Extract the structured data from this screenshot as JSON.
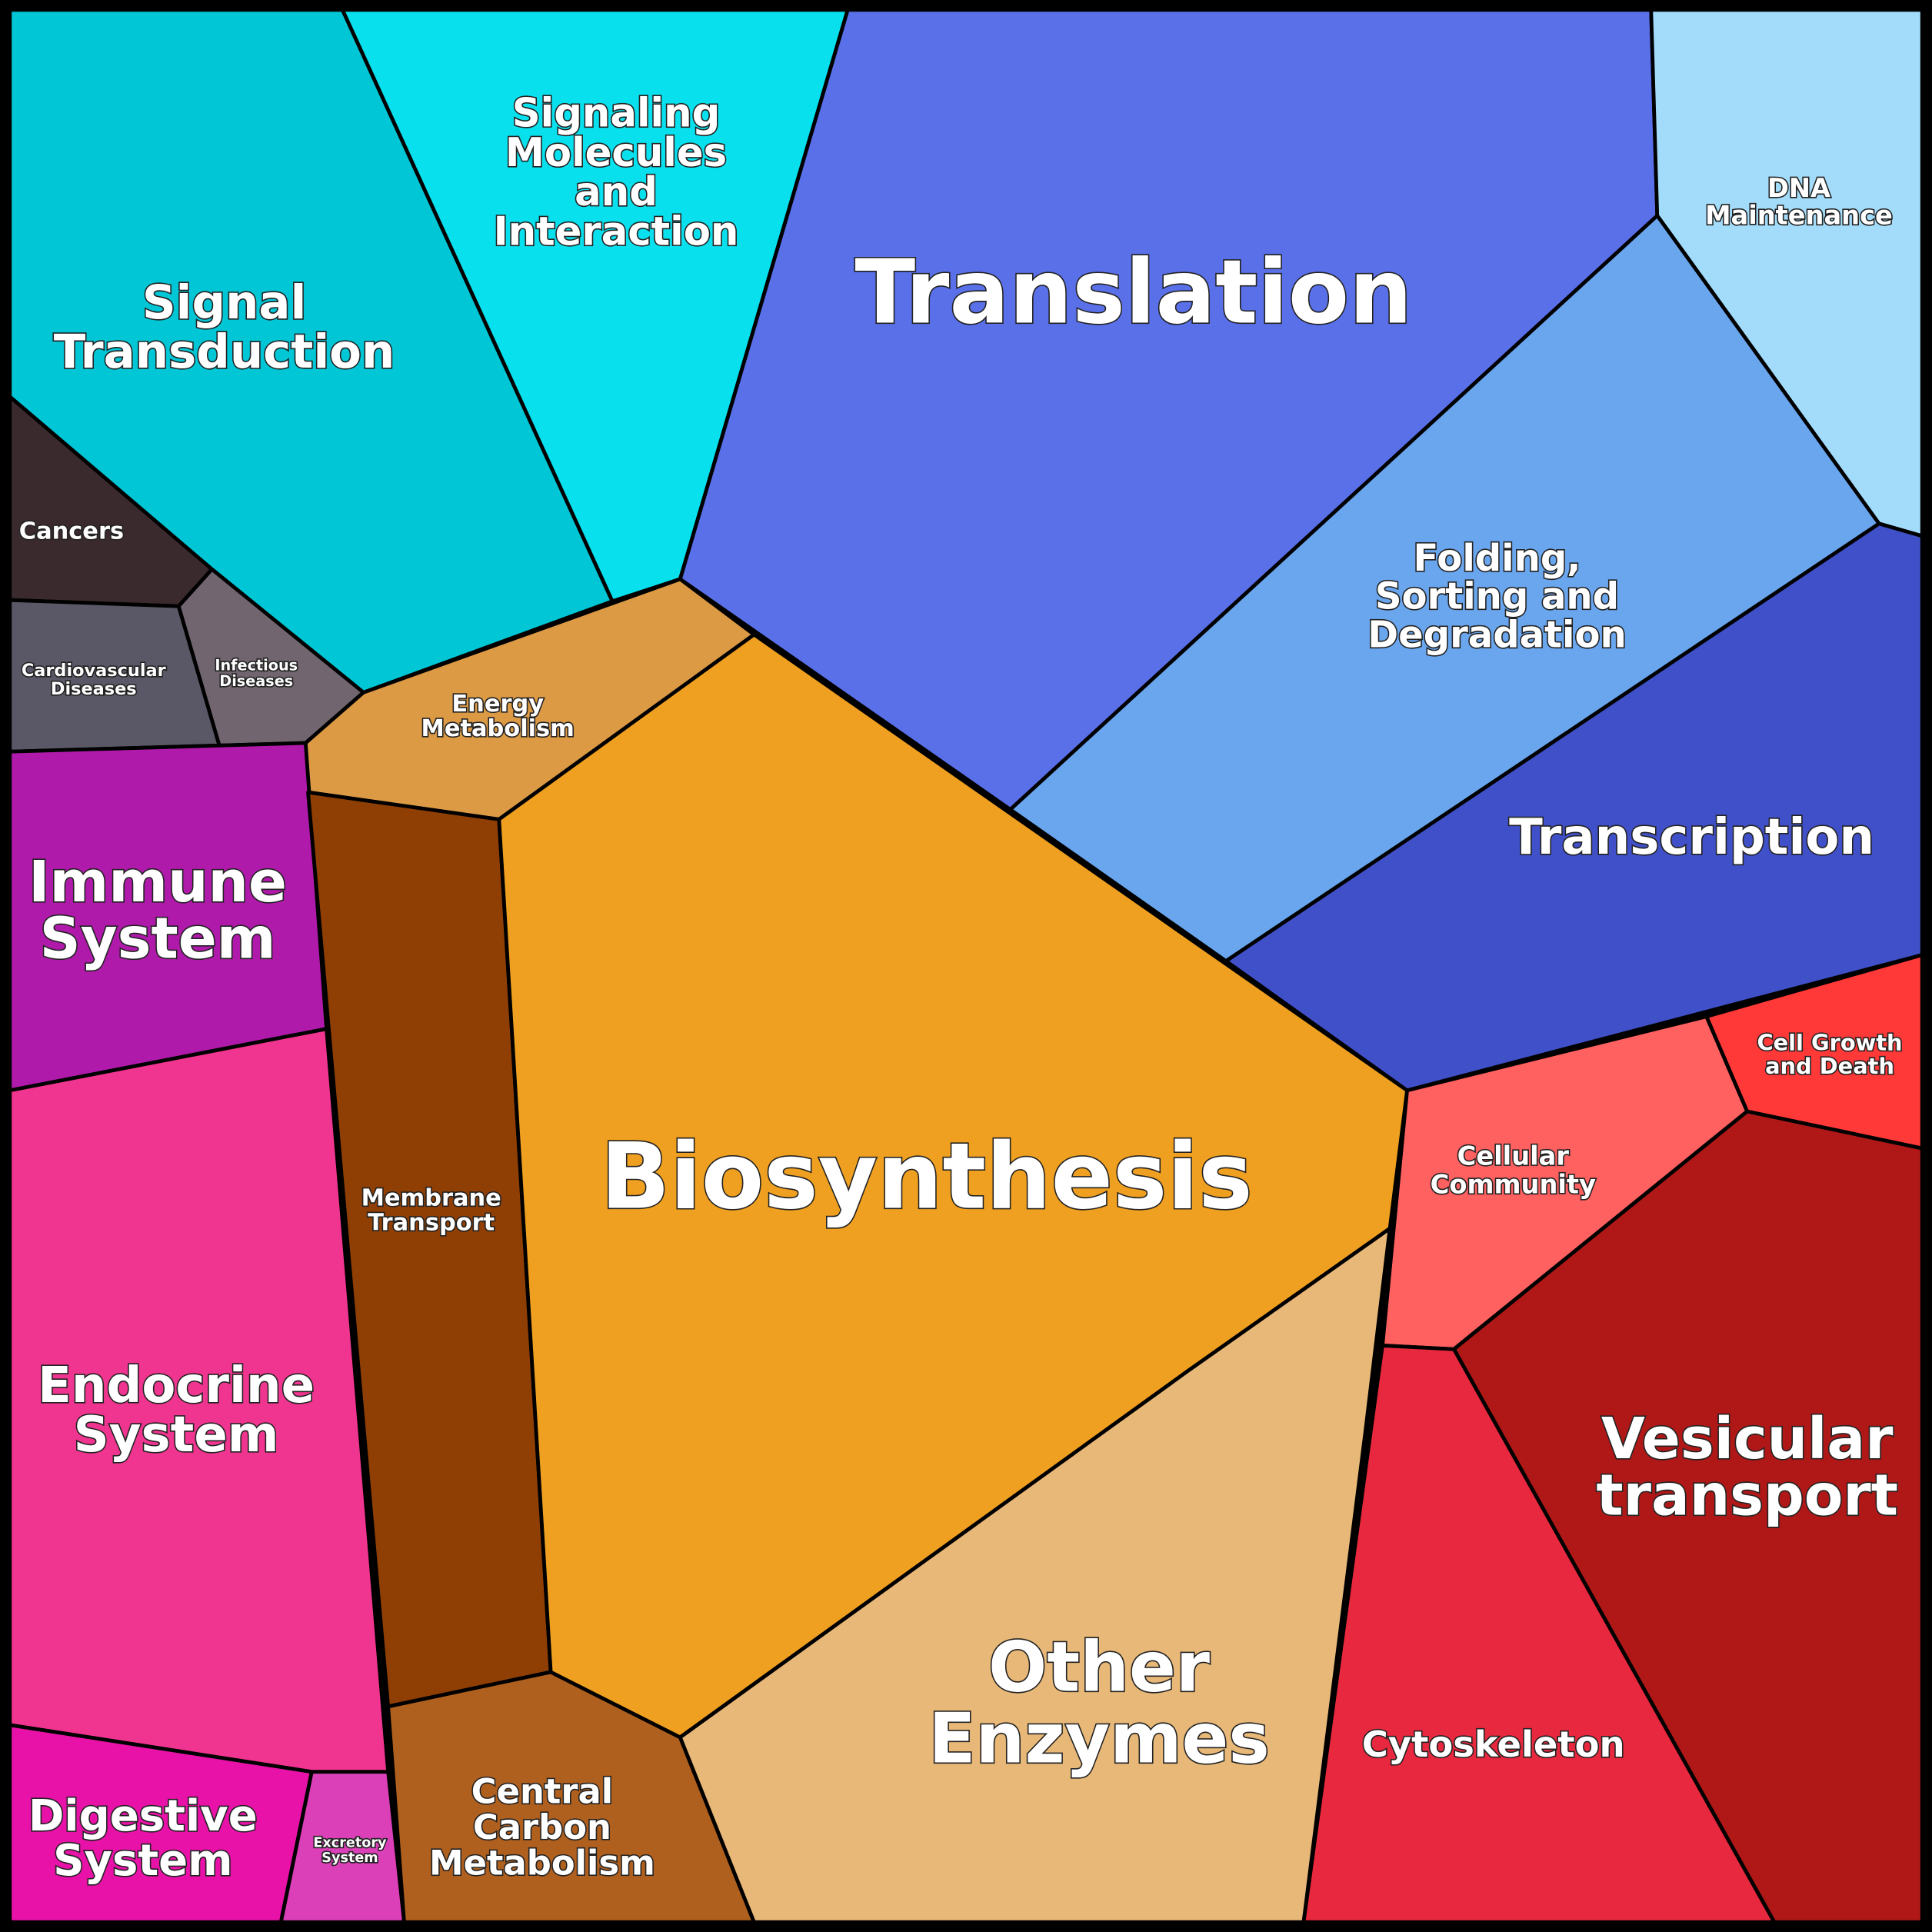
{
  "regions": [
    {
      "label": [
        "Signal",
        "Transduction"
      ]
    },
    {
      "label": [
        "Signaling",
        "Molecules",
        "and",
        "Interaction"
      ]
    },
    {
      "label": [
        "Translation"
      ]
    },
    {
      "label": [
        "DNA",
        "Maintenance"
      ]
    },
    {
      "label": [
        "Folding,",
        "Sorting and",
        "Degradation"
      ]
    },
    {
      "label": [
        "Transcription"
      ]
    },
    {
      "label": [
        "Cancers"
      ]
    },
    {
      "label": [
        "Cardiovascular",
        "Diseases"
      ]
    },
    {
      "label": [
        "Infectious",
        "Diseases"
      ]
    },
    {
      "label": [
        "Energy",
        "Metabolism"
      ]
    },
    {
      "label": [
        "Immune",
        "System"
      ]
    },
    {
      "label": [
        "Endocrine",
        "System"
      ]
    },
    {
      "label": [
        "Digestive",
        "System"
      ]
    },
    {
      "label": [
        "Excretory",
        "System"
      ]
    },
    {
      "label": [
        "Membrane",
        "Transport"
      ]
    },
    {
      "label": [
        "Central",
        "Carbon",
        "Metabolism"
      ]
    },
    {
      "label": [
        "Biosynthesis"
      ]
    },
    {
      "label": [
        "Other",
        "Enzymes"
      ]
    },
    {
      "label": [
        "Cellular",
        "Community"
      ]
    },
    {
      "label": [
        "Cell Growth",
        "and Death"
      ]
    },
    {
      "label": [
        "Vesicular",
        "transport"
      ]
    },
    {
      "label": [
        "Cytoskeleton"
      ]
    }
  ]
}
